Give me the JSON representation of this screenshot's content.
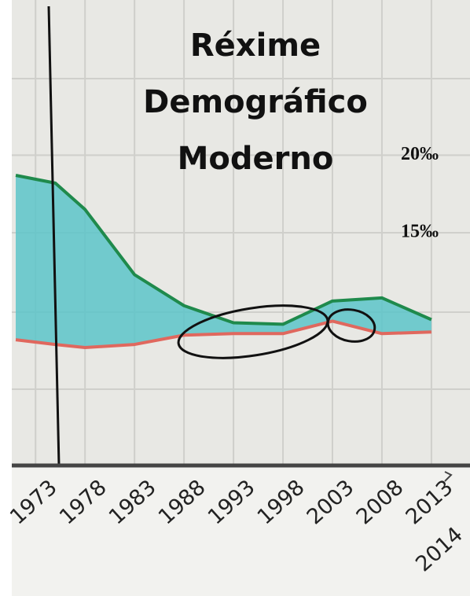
{
  "chart_data": {
    "type": "area-between",
    "title": "Réxime Demográfico Moderno",
    "x": [
      1971,
      1975,
      1978,
      1983,
      1988,
      1993,
      1998,
      2003,
      2008,
      2013
    ],
    "series": [
      {
        "color": "#1f8a4c",
        "values": [
          18.7,
          18.2,
          16.5,
          12.3,
          10.3,
          9.2,
          9.1,
          10.6,
          10.8,
          9.4
        ]
      },
      {
        "color": "#e0685e",
        "values": [
          8.1,
          7.8,
          7.6,
          7.8,
          8.4,
          8.5,
          8.5,
          9.3,
          8.5,
          8.6
        ]
      }
    ],
    "fill_color": "#5cc4c9",
    "xlim": [
      1970.6,
      2016.9
    ],
    "xticks": [
      1973,
      1978,
      1983,
      1988,
      1993,
      1998,
      2003,
      2008,
      2013,
      2014
    ],
    "ylim": [
      0,
      30
    ],
    "yticks": [
      {
        "value": 15,
        "label": "15‰"
      },
      {
        "value": 20,
        "label": "20‰"
      }
    ],
    "grid": true
  }
}
